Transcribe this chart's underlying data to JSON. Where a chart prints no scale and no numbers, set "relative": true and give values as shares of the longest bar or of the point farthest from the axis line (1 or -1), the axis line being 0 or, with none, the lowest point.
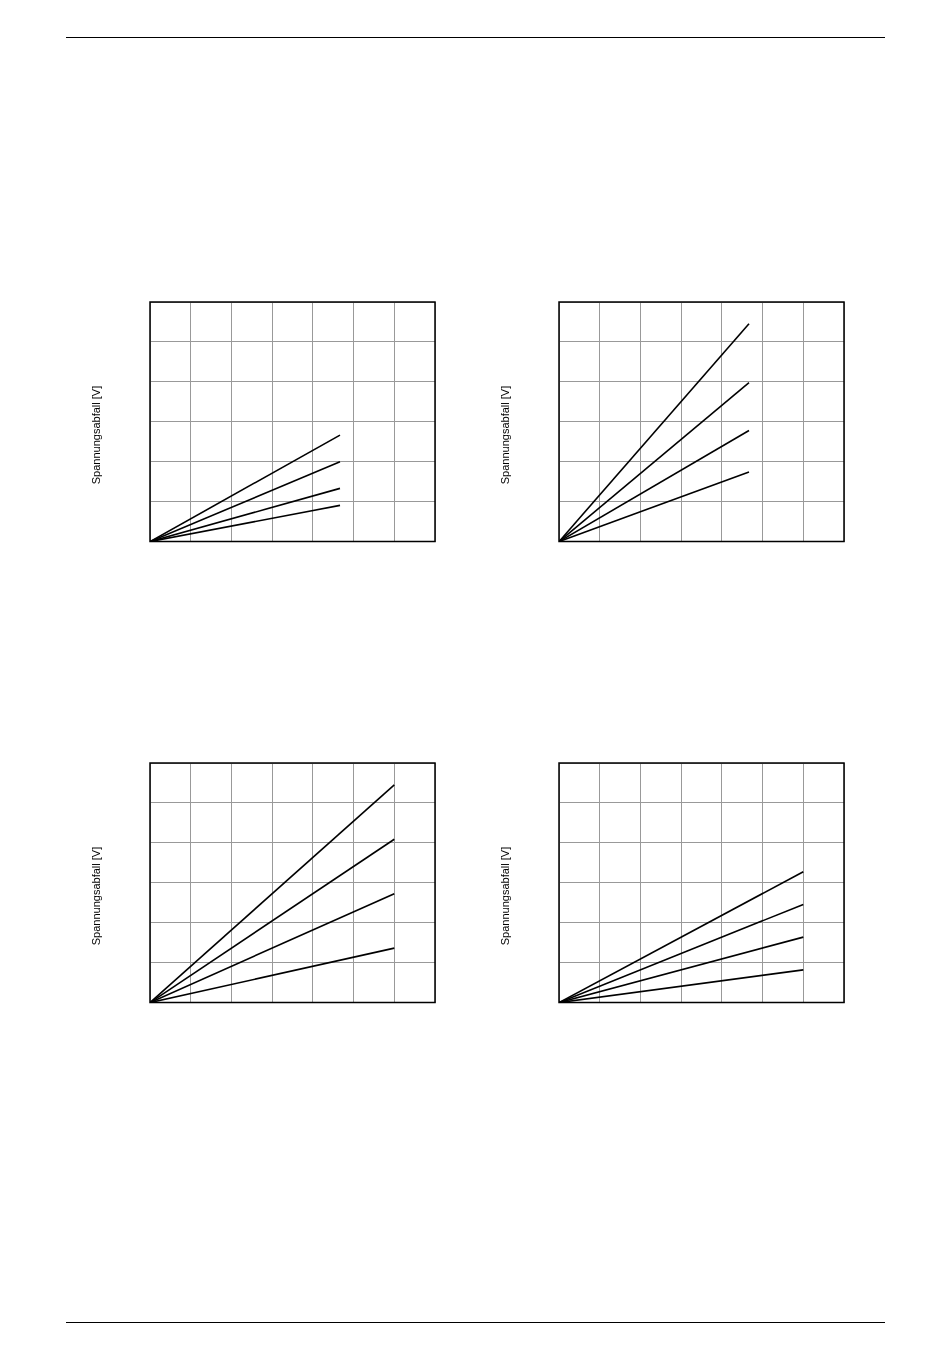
{
  "chart_data": [
    {
      "type": "line",
      "relative": true,
      "ylabel": "Spannungsabfall [V]",
      "grid": true,
      "categories": [
        null,
        null,
        null,
        null,
        null,
        null,
        null,
        null,
        null,
        null,
        null,
        null,
        null,
        null,
        null,
        null,
        null,
        null,
        null,
        null,
        null,
        null
      ],
      "series": [
        {
          "color": "#000000",
          "values": [
            0,
            null,
            null,
            null,
            null,
            null,
            null,
            null,
            null,
            null,
            null,
            null,
            null,
            null,
            1,
            null,
            null,
            null,
            null,
            null,
            null,
            null
          ]
        },
        {
          "color": "#000000",
          "values": [
            0,
            null,
            null,
            null,
            null,
            null,
            null,
            null,
            null,
            null,
            null,
            null,
            null,
            null,
            0.75,
            null,
            null,
            null,
            null,
            null,
            null,
            null
          ]
        },
        {
          "color": "#000000",
          "values": [
            0,
            null,
            null,
            null,
            null,
            null,
            null,
            null,
            null,
            null,
            null,
            null,
            null,
            null,
            0.5,
            null,
            null,
            null,
            null,
            null,
            null,
            null
          ]
        },
        {
          "color": "#000000",
          "values": [
            0,
            null,
            null,
            null,
            null,
            null,
            null,
            null,
            null,
            null,
            null,
            null,
            null,
            null,
            0.34,
            null,
            null,
            null,
            null,
            null,
            null,
            null
          ]
        }
      ]
    },
    {
      "type": "line",
      "relative": true,
      "ylabel": "Spannungsabfall [V]",
      "grid": true,
      "categories": [
        null,
        null,
        null,
        null,
        null,
        null,
        null,
        null,
        null,
        null,
        null,
        null,
        null,
        null,
        null,
        null,
        null,
        null,
        null,
        null,
        null,
        null
      ],
      "series": [
        {
          "color": "#000000",
          "values": [
            0,
            null,
            null,
            null,
            null,
            null,
            null,
            null,
            null,
            null,
            null,
            null,
            null,
            null,
            1,
            null,
            null,
            null,
            null,
            null,
            null,
            null
          ]
        },
        {
          "color": "#000000",
          "values": [
            0,
            null,
            null,
            null,
            null,
            null,
            null,
            null,
            null,
            null,
            null,
            null,
            null,
            null,
            0.73,
            null,
            null,
            null,
            null,
            null,
            null,
            null
          ]
        },
        {
          "color": "#000000",
          "values": [
            0,
            null,
            null,
            null,
            null,
            null,
            null,
            null,
            null,
            null,
            null,
            null,
            null,
            null,
            0.51,
            null,
            null,
            null,
            null,
            null,
            null,
            null
          ]
        },
        {
          "color": "#000000",
          "values": [
            0,
            null,
            null,
            null,
            null,
            null,
            null,
            null,
            null,
            null,
            null,
            null,
            null,
            null,
            0.32,
            null,
            null,
            null,
            null,
            null,
            null,
            null
          ]
        }
      ]
    },
    {
      "type": "line",
      "relative": true,
      "ylabel": "Spannungsabfall [V]",
      "grid": true,
      "categories": [
        null,
        null,
        null,
        null,
        null,
        null,
        null,
        null,
        null,
        null,
        null,
        null,
        null,
        null,
        null,
        null,
        null,
        null,
        null,
        null,
        null,
        null
      ],
      "series": [
        {
          "color": "#000000",
          "values": [
            0,
            null,
            null,
            null,
            null,
            null,
            null,
            null,
            null,
            null,
            null,
            null,
            null,
            null,
            null,
            null,
            null,
            null,
            1,
            null,
            null,
            null
          ]
        },
        {
          "color": "#000000",
          "values": [
            0,
            null,
            null,
            null,
            null,
            null,
            null,
            null,
            null,
            null,
            null,
            null,
            null,
            null,
            null,
            null,
            null,
            null,
            0.75,
            null,
            null,
            null
          ]
        },
        {
          "color": "#000000",
          "values": [
            0,
            null,
            null,
            null,
            null,
            null,
            null,
            null,
            null,
            null,
            null,
            null,
            null,
            null,
            null,
            null,
            null,
            null,
            0.5,
            null,
            null,
            null
          ]
        },
        {
          "color": "#000000",
          "values": [
            0,
            null,
            null,
            null,
            null,
            null,
            null,
            null,
            null,
            null,
            null,
            null,
            null,
            null,
            null,
            null,
            null,
            null,
            0.25,
            null,
            null,
            null
          ]
        }
      ]
    },
    {
      "type": "line",
      "relative": true,
      "ylabel": "Spannungsabfall [V]",
      "grid": true,
      "categories": [
        null,
        null,
        null,
        null,
        null,
        null,
        null,
        null,
        null,
        null,
        null,
        null,
        null,
        null,
        null,
        null,
        null,
        null,
        null,
        null,
        null,
        null
      ],
      "series": [
        {
          "color": "#000000",
          "values": [
            0,
            null,
            null,
            null,
            null,
            null,
            null,
            null,
            null,
            null,
            null,
            null,
            null,
            null,
            null,
            null,
            null,
            null,
            1,
            null,
            null,
            null
          ]
        },
        {
          "color": "#000000",
          "values": [
            0,
            null,
            null,
            null,
            null,
            null,
            null,
            null,
            null,
            null,
            null,
            null,
            null,
            null,
            null,
            null,
            null,
            null,
            0.75,
            null,
            null,
            null
          ]
        },
        {
          "color": "#000000",
          "values": [
            0,
            null,
            null,
            null,
            null,
            null,
            null,
            null,
            null,
            null,
            null,
            null,
            null,
            null,
            null,
            null,
            null,
            null,
            0.5,
            null,
            null,
            null
          ]
        },
        {
          "color": "#000000",
          "values": [
            0,
            null,
            null,
            null,
            null,
            null,
            null,
            null,
            null,
            null,
            null,
            null,
            null,
            null,
            null,
            null,
            null,
            null,
            0.25,
            null,
            null,
            null
          ]
        }
      ]
    }
  ]
}
